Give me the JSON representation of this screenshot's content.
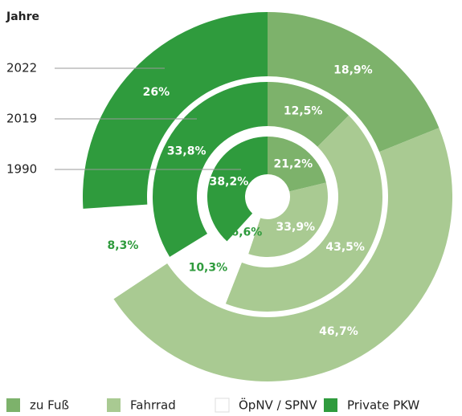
{
  "chart_data": {
    "type": "nested_donut",
    "ring_label_title": "Jahre",
    "categories": [
      "zu Fuß",
      "Fahrrad",
      "ÖpNV / SPNV",
      "Private PKW"
    ],
    "colors": [
      "#7db26b",
      "#a9ca92",
      "#ffffff",
      "#2f9b3d"
    ],
    "rings": [
      {
        "name": "2022",
        "values": [
          18.9,
          46.7,
          8.3,
          26
        ],
        "value_labels": [
          "18,9%",
          "46,7%",
          "8,3%",
          "26%"
        ]
      },
      {
        "name": "2019",
        "values": [
          12.5,
          43.5,
          10.3,
          33.8
        ],
        "value_labels": [
          "12,5%",
          "43,5%",
          "10,3%",
          "33,8%"
        ]
      },
      {
        "name": "1990",
        "values": [
          21.2,
          33.9,
          6.6,
          38.2
        ],
        "value_labels": [
          "21,2%",
          "33,9%",
          "6,6%",
          "38,2%"
        ]
      }
    ]
  }
}
